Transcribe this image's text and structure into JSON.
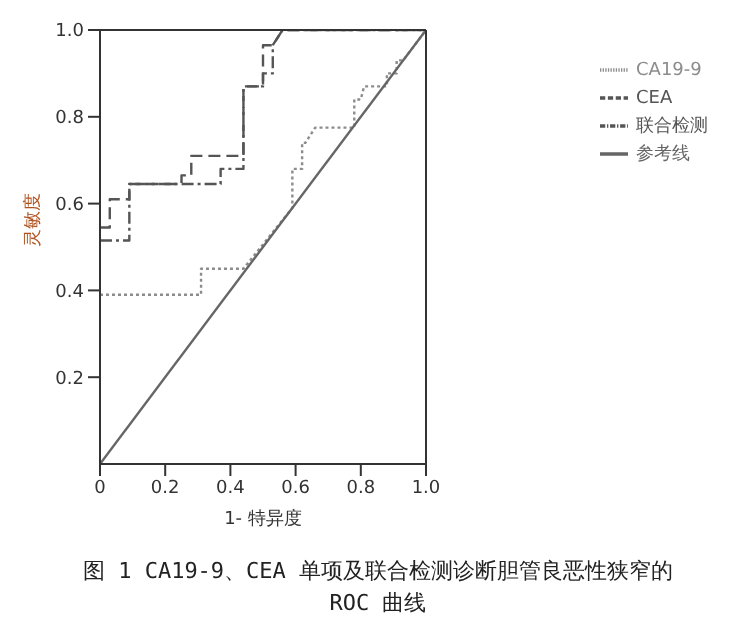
{
  "chart_data": {
    "type": "line",
    "title": "图 1  CA19-9、CEA 单项及联合检测诊断胆管良恶性狭窄的 ROC 曲线",
    "xlabel": "1- 特异度",
    "ylabel": "灵敏度",
    "xlim": [
      0,
      1
    ],
    "ylim": [
      0,
      1
    ],
    "xticks": [
      0,
      0.2,
      0.4,
      0.6,
      0.8,
      {
        "value": 1,
        "label": "1.0"
      }
    ],
    "yticks": [
      0.2,
      0.4,
      0.6,
      0.8,
      {
        "value": 1,
        "label": "1.0"
      }
    ],
    "legend": "top right",
    "marker": "none",
    "series": [
      {
        "name": "CA19-9",
        "color": "#8c8c8c",
        "line_style": "dotted",
        "x": [
          0,
          0.31,
          0.31,
          0.44,
          0.59,
          0.59,
          0.62,
          0.62,
          0.63,
          0.66,
          0.78,
          0.78,
          0.8,
          0.81,
          0.87,
          0.88,
          0.88,
          0.9,
          0.91,
          0.91,
          0.93,
          1
        ],
        "values": [
          0.39,
          0.39,
          0.45,
          0.45,
          0.59,
          0.68,
          0.68,
          0.74,
          0.74,
          0.775,
          0.775,
          0.84,
          0.84,
          0.87,
          0.87,
          0.87,
          0.9,
          0.9,
          0.9,
          0.93,
          0.93,
          1
        ]
      },
      {
        "name": "CEA",
        "color": "#555555",
        "line_style": "dashed",
        "x": [
          0,
          0.03,
          0.03,
          0.09,
          0.09,
          0.25,
          0.25,
          0.28,
          0.28,
          0.44,
          0.44,
          0.5,
          0.5,
          0.53,
          0.56,
          1
        ],
        "values": [
          0.545,
          0.545,
          0.61,
          0.61,
          0.645,
          0.645,
          0.665,
          0.665,
          0.71,
          0.71,
          0.87,
          0.87,
          0.965,
          0.965,
          1,
          1
        ]
      },
      {
        "name": "联合检测",
        "color": "#555555",
        "line_style": "dashdot",
        "x": [
          0,
          0.09,
          0.09,
          0.37,
          0.37,
          0.44,
          0.44,
          0.5,
          0.5,
          0.53,
          0.53,
          0.56,
          1
        ],
        "values": [
          0.515,
          0.515,
          0.645,
          0.645,
          0.68,
          0.68,
          0.87,
          0.87,
          0.9,
          0.9,
          0.965,
          1,
          1
        ]
      },
      {
        "name": "参考线",
        "color": "#666666",
        "line_style": "solid",
        "x": [
          0,
          1
        ],
        "values": [
          0,
          1
        ]
      }
    ]
  }
}
